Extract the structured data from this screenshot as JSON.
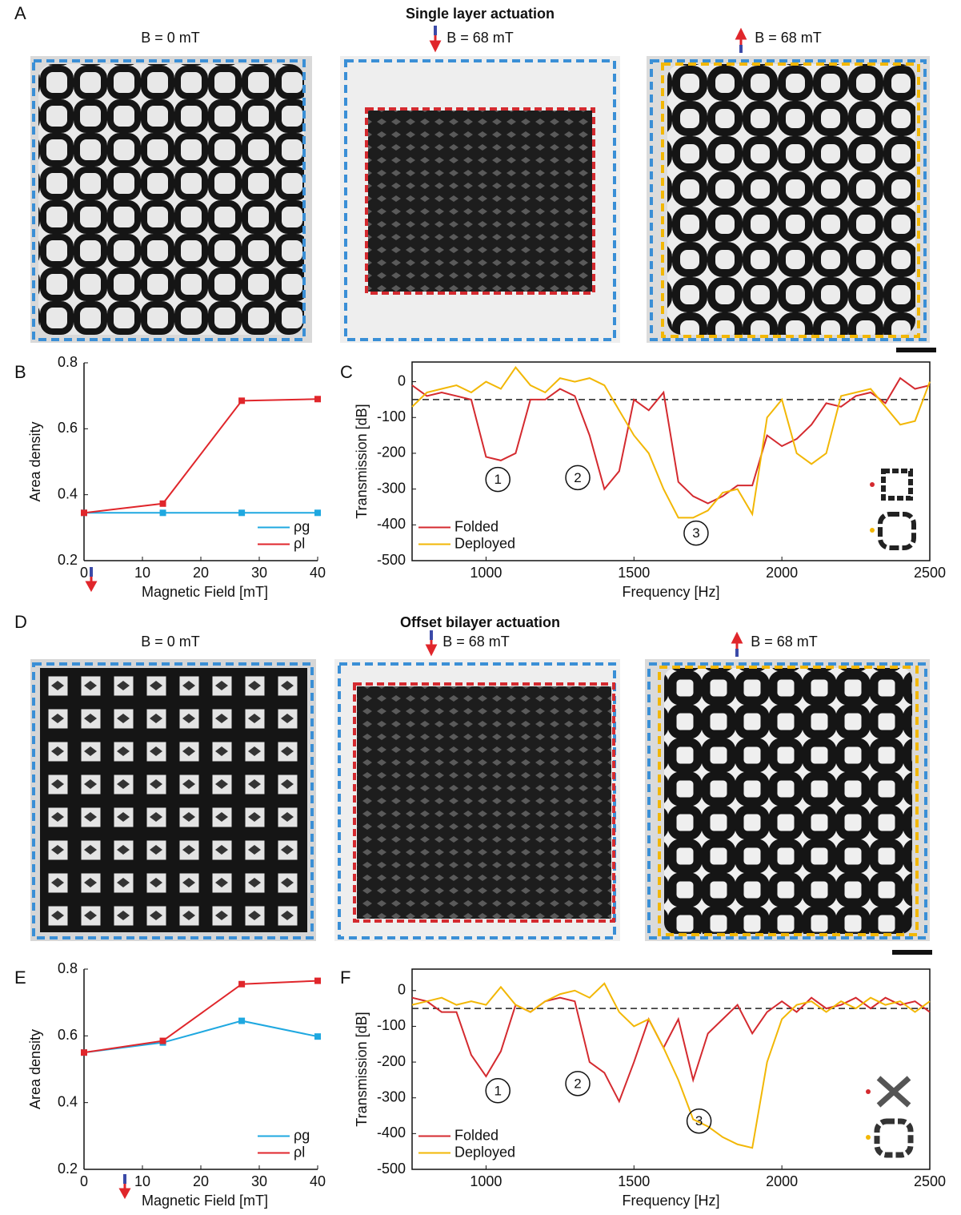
{
  "figure": {
    "panel_letters": [
      "A",
      "B",
      "C",
      "D",
      "E",
      "F"
    ],
    "rows": [
      {
        "title": "Single layer actuation",
        "states": [
          "B = 0 mT",
          "B = 68 mT",
          "B = 68 mT"
        ]
      },
      {
        "title": "Offset bilayer actuation",
        "states": [
          "B = 0 mT",
          "B = 68 mT",
          "B = 68 mT"
        ]
      }
    ]
  },
  "chart_data": [
    {
      "type": "line",
      "xlabel": "Magnetic Field [mT]",
      "ylabel": "Area density",
      "x": [
        0,
        13.5,
        27,
        40
      ],
      "series": [
        {
          "name": "ρg",
          "color": "#1fa8e0",
          "values": [
            0.345,
            0.345,
            0.345,
            0.345
          ]
        },
        {
          "name": "ρl",
          "color": "#e0262b",
          "values": [
            0.345,
            0.373,
            0.685,
            0.69
          ]
        }
      ],
      "xlim": [
        0,
        40
      ],
      "ylim": [
        0.2,
        0.8
      ],
      "xticks": [
        0,
        10,
        20,
        30,
        40
      ],
      "yticks": [
        0.2,
        0.4,
        0.6,
        0.8
      ],
      "markers": true,
      "box": false,
      "legend": "lower right"
    },
    {
      "type": "line",
      "xlabel": "Frequency [Hz]",
      "ylabel": "Transmission [dB]",
      "x": [
        750,
        800,
        850,
        900,
        950,
        1000,
        1050,
        1100,
        1150,
        1200,
        1250,
        1300,
        1350,
        1400,
        1450,
        1500,
        1550,
        1600,
        1650,
        1700,
        1750,
        1800,
        1850,
        1900,
        1950,
        2000,
        2050,
        2100,
        2150,
        2200,
        2250,
        2300,
        2350,
        2400,
        2450,
        2500
      ],
      "series": [
        {
          "name": "Folded",
          "color": "#d42a2f",
          "values": [
            -10,
            -40,
            -30,
            -40,
            -50,
            -210,
            -220,
            -200,
            -50,
            -50,
            -20,
            -40,
            -150,
            -300,
            -250,
            -50,
            -80,
            -30,
            -280,
            -320,
            -340,
            -320,
            -290,
            -290,
            -150,
            -180,
            -160,
            -120,
            -60,
            -70,
            -40,
            -30,
            -60,
            10,
            -20,
            -10
          ]
        },
        {
          "name": "Deployed",
          "color": "#f2b705",
          "values": [
            -70,
            -30,
            -20,
            -10,
            -30,
            0,
            -20,
            40,
            -10,
            -30,
            10,
            0,
            10,
            -10,
            -80,
            -150,
            -200,
            -300,
            -380,
            -380,
            -360,
            -310,
            -300,
            -370,
            -100,
            -50,
            -200,
            -230,
            -200,
            -40,
            -30,
            -20,
            -70,
            -120,
            -110,
            0
          ]
        }
      ],
      "xlim": [
        750,
        2500
      ],
      "ylim": [
        -500,
        55
      ],
      "xticks": [
        1000,
        1500,
        2000,
        2500
      ],
      "yticks": [
        -500,
        -400,
        -300,
        -200,
        -100,
        0
      ],
      "reference_line": -50,
      "markers": false,
      "box": true,
      "legend": "lower left",
      "annotations": [
        {
          "text": "1",
          "x": 1040,
          "y": -273
        },
        {
          "text": "2",
          "x": 1310,
          "y": -268
        },
        {
          "text": "3",
          "x": 1710,
          "y": -423
        }
      ]
    },
    {
      "type": "line",
      "xlabel": "Magnetic Field [mT]",
      "ylabel": "Area density",
      "x": [
        0,
        13.5,
        27,
        40
      ],
      "series": [
        {
          "name": "ρg",
          "color": "#1fa8e0",
          "values": [
            0.55,
            0.58,
            0.645,
            0.598
          ]
        },
        {
          "name": "ρl",
          "color": "#e0262b",
          "values": [
            0.55,
            0.585,
            0.755,
            0.765
          ]
        }
      ],
      "xlim": [
        0,
        40
      ],
      "ylim": [
        0.2,
        0.8
      ],
      "xticks": [
        0,
        10,
        20,
        30,
        40
      ],
      "yticks": [
        0.2,
        0.4,
        0.6,
        0.8
      ],
      "markers": true,
      "box": false,
      "legend": "lower right"
    },
    {
      "type": "line",
      "xlabel": "Frequency [Hz]",
      "ylabel": "Transmission [dB]",
      "x": [
        750,
        800,
        850,
        900,
        950,
        1000,
        1050,
        1100,
        1150,
        1200,
        1250,
        1300,
        1350,
        1400,
        1450,
        1500,
        1550,
        1600,
        1650,
        1700,
        1750,
        1800,
        1850,
        1900,
        1950,
        2000,
        2050,
        2100,
        2150,
        2200,
        2250,
        2300,
        2350,
        2400,
        2450,
        2500
      ],
      "series": [
        {
          "name": "Folded",
          "color": "#d42a2f",
          "values": [
            -20,
            -30,
            -60,
            -60,
            -180,
            -240,
            -170,
            -40,
            -60,
            -30,
            -20,
            -30,
            -200,
            -230,
            -310,
            -200,
            -80,
            -160,
            -80,
            -250,
            -120,
            -80,
            -40,
            -120,
            -60,
            -30,
            -60,
            -20,
            -50,
            -40,
            -20,
            -50,
            -20,
            -40,
            -30,
            -60
          ]
        },
        {
          "name": "Deployed",
          "color": "#f2b705",
          "values": [
            -40,
            -30,
            -20,
            -40,
            -30,
            -40,
            10,
            -40,
            -60,
            -30,
            -10,
            0,
            -20,
            20,
            -60,
            -100,
            -80,
            -160,
            -250,
            -360,
            -380,
            -410,
            -430,
            -440,
            -200,
            -80,
            -40,
            -30,
            -60,
            -30,
            -50,
            -20,
            -40,
            -30,
            -60,
            -30
          ]
        }
      ],
      "xlim": [
        750,
        2500
      ],
      "ylim": [
        -500,
        60
      ],
      "xticks": [
        1000,
        1500,
        2000,
        2500
      ],
      "yticks": [
        -500,
        -400,
        -300,
        -200,
        -100,
        0
      ],
      "reference_line": -50,
      "markers": false,
      "box": true,
      "legend": "lower left",
      "annotations": [
        {
          "text": "1",
          "x": 1040,
          "y": -280
        },
        {
          "text": "2",
          "x": 1310,
          "y": -260
        },
        {
          "text": "3",
          "x": 1720,
          "y": -365
        }
      ]
    }
  ]
}
